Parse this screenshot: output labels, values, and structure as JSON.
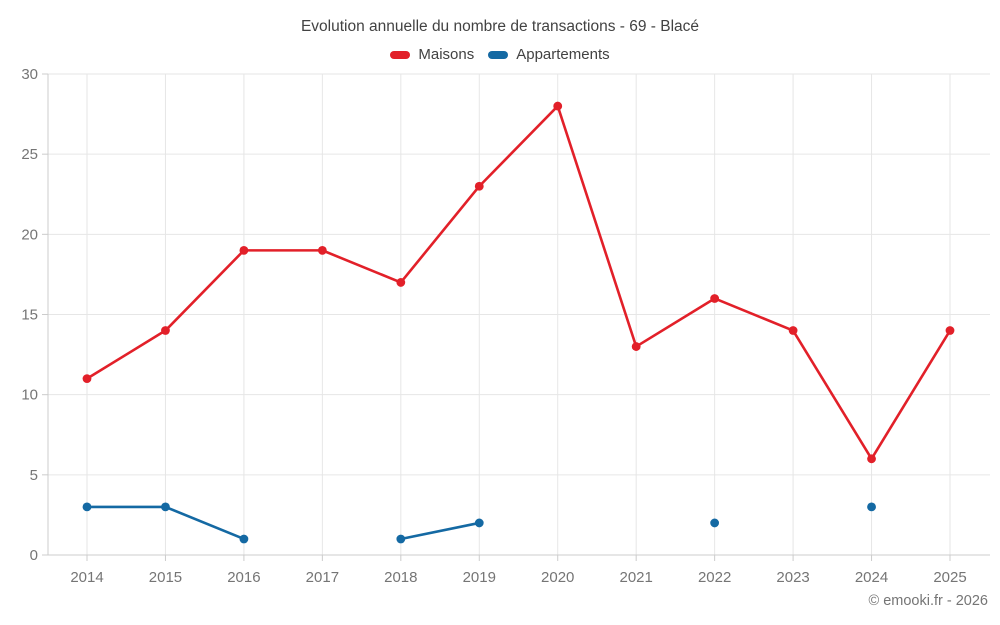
{
  "chart_data": {
    "type": "line",
    "title": "Evolution annuelle du nombre de transactions - 69 - Blacé",
    "categories": [
      "2014",
      "2015",
      "2016",
      "2017",
      "2018",
      "2019",
      "2020",
      "2021",
      "2022",
      "2023",
      "2024",
      "2025"
    ],
    "series": [
      {
        "name": "Maisons",
        "color": "#e22029",
        "values": [
          11,
          14,
          19,
          19,
          17,
          23,
          28,
          13,
          16,
          14,
          6,
          14
        ]
      },
      {
        "name": "Appartements",
        "color": "#1469a3",
        "values": [
          3,
          3,
          1,
          null,
          1,
          2,
          null,
          null,
          2,
          null,
          3,
          null
        ]
      }
    ],
    "xlabel": "",
    "ylabel": "",
    "ylim": [
      0,
      30
    ],
    "yticks": [
      0,
      5,
      10,
      15,
      20,
      25,
      30
    ],
    "grid": true,
    "legend_position": "top"
  },
  "footer": {
    "copyright": "© emooki.fr - 2026"
  },
  "theme": {
    "background": "#ffffff",
    "grid_color": "#e6e6e6",
    "axis_color": "#cccccc",
    "tick_label_color": "#757575",
    "title_color": "#424242"
  }
}
